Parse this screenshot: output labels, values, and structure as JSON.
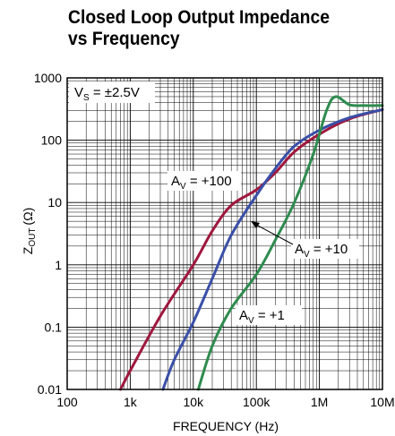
{
  "chart_data": {
    "type": "line",
    "title_line1": "Closed Loop Output Impedance",
    "title_line2": "vs Frequency",
    "xlabel": "FREQUENCY (Hz)",
    "ylabel_main": "Z",
    "ylabel_sub": "OUT",
    "ylabel_unit": "(Ω)",
    "x_scale": "log",
    "y_scale": "log",
    "xlim": [
      100,
      10000000
    ],
    "ylim": [
      0.01,
      1000
    ],
    "x_ticks": [
      {
        "value": 100,
        "label": "100"
      },
      {
        "value": 1000,
        "label": "1k"
      },
      {
        "value": 10000,
        "label": "10k"
      },
      {
        "value": 100000,
        "label": "100k"
      },
      {
        "value": 1000000,
        "label": "1M"
      },
      {
        "value": 10000000,
        "label": "10M"
      }
    ],
    "y_ticks": [
      {
        "value": 1000,
        "label": "1000"
      },
      {
        "value": 100,
        "label": "100"
      },
      {
        "value": 10,
        "label": "10"
      },
      {
        "value": 1,
        "label": "1"
      },
      {
        "value": 0.1,
        "label": "0.1"
      },
      {
        "value": 0.01,
        "label": "0.01"
      }
    ],
    "grid": true,
    "condition": {
      "main": "V",
      "sub": "S",
      "rest": " = ±2.5V"
    },
    "series": [
      {
        "name_main": "A",
        "name_sub": "V",
        "name_rest": " = +100",
        "color": "#a0173d",
        "points": [
          [
            700,
            0.01
          ],
          [
            1000,
            0.02
          ],
          [
            3000,
            0.15
          ],
          [
            10000,
            1.0
          ],
          [
            20000,
            3.5
          ],
          [
            40000,
            9
          ],
          [
            100000,
            16
          ],
          [
            200000,
            30
          ],
          [
            400000,
            65
          ],
          [
            1000000,
            125
          ],
          [
            3000000,
            220
          ],
          [
            10000000,
            310
          ]
        ]
      },
      {
        "name_main": "A",
        "name_sub": "V",
        "name_rest": " = +10",
        "color": "#3a4fa8",
        "points": [
          [
            3300,
            0.01
          ],
          [
            5000,
            0.03
          ],
          [
            10000,
            0.12
          ],
          [
            20000,
            0.6
          ],
          [
            40000,
            3
          ],
          [
            100000,
            13
          ],
          [
            200000,
            35
          ],
          [
            400000,
            80
          ],
          [
            1000000,
            145
          ],
          [
            3000000,
            230
          ],
          [
            10000000,
            310
          ]
        ]
      },
      {
        "name_main": "A",
        "name_sub": "V",
        "name_rest": " = +1",
        "color": "#2e8b4e",
        "points": [
          [
            12000,
            0.01
          ],
          [
            20000,
            0.05
          ],
          [
            40000,
            0.2
          ],
          [
            100000,
            0.7
          ],
          [
            200000,
            2.5
          ],
          [
            400000,
            10
          ],
          [
            800000,
            60
          ],
          [
            1300000,
            300
          ],
          [
            1800000,
            500
          ],
          [
            3000000,
            370
          ],
          [
            5000000,
            360
          ],
          [
            10000000,
            360
          ]
        ]
      }
    ]
  }
}
